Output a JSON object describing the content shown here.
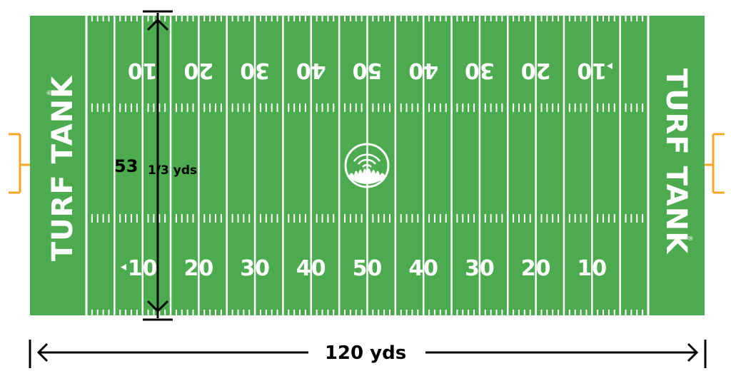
{
  "field": {
    "turf_color": "#4caa4f",
    "line_color": "#ffffff",
    "goalpost_color": "#f5a623",
    "brand_left": "TURF TANK",
    "brand_right": "TURF TANK",
    "registered_mark": "®",
    "yard_numbers_top": [
      "10",
      "20",
      "30",
      "40",
      "50",
      "40",
      "30",
      "20",
      "10"
    ],
    "yard_numbers_bottom": [
      "10",
      "20",
      "30",
      "40",
      "50",
      "40",
      "30",
      "20",
      "10"
    ],
    "logo_icon": "turf-tank-grass-logo-icon"
  },
  "dimensions": {
    "width_main": "53",
    "width_fraction": "1/3 yds",
    "length_label": "120 yds"
  }
}
